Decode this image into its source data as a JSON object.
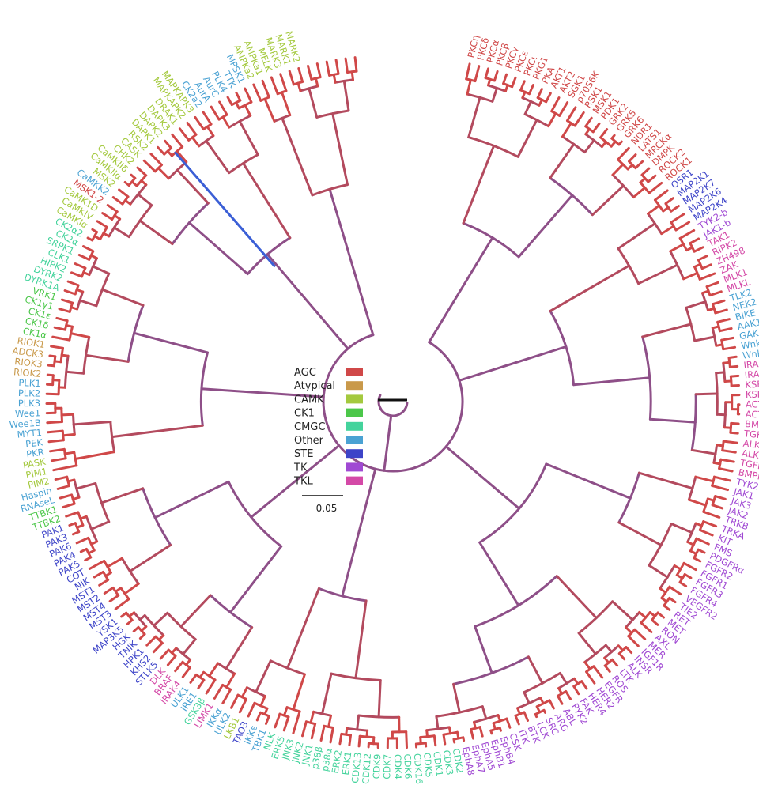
{
  "colors": {
    "AGC": "#d04848",
    "Atypical": "#c9994a",
    "CAMK": "#a4c93e",
    "CK1": "#4cc74a",
    "CMGC": "#44d39c",
    "Other": "#4aa2d3",
    "STE": "#3d44c8",
    "TK": "#a049d3",
    "TKL": "#d449a7",
    "backbone": "#8e4f88",
    "mid": "#b34a5e",
    "highlight": "#3b5fd6",
    "root": "#111111"
  },
  "legend": [
    {
      "label": "AGC",
      "key": "AGC"
    },
    {
      "label": "Atypical",
      "key": "Atypical"
    },
    {
      "label": "CAMK",
      "key": "CAMK"
    },
    {
      "label": "CK1",
      "key": "CK1"
    },
    {
      "label": "CMGC",
      "key": "CMGC"
    },
    {
      "label": "Other",
      "key": "Other"
    },
    {
      "label": "STE",
      "key": "STE"
    },
    {
      "label": "TK",
      "key": "TK"
    },
    {
      "label": "TKL",
      "key": "TKL"
    }
  ],
  "scale_bar": {
    "label": "0.05"
  },
  "leaves": [
    {
      "n": "PKCη",
      "g": "AGC"
    },
    {
      "n": "PKCδ",
      "g": "AGC"
    },
    {
      "n": "PKCα",
      "g": "AGC"
    },
    {
      "n": "PKCβ",
      "g": "AGC"
    },
    {
      "n": "PKCγ",
      "g": "AGC"
    },
    {
      "n": "PKCε",
      "g": "AGC"
    },
    {
      "n": "PKCι",
      "g": "AGC"
    },
    {
      "n": "PKG1",
      "g": "AGC"
    },
    {
      "n": "PKA",
      "g": "AGC"
    },
    {
      "n": "AKT1",
      "g": "AGC"
    },
    {
      "n": "AKT2",
      "g": "AGC"
    },
    {
      "n": "SGK1",
      "g": "AGC"
    },
    {
      "n": "p70S6K",
      "g": "AGC"
    },
    {
      "n": "RSK1",
      "g": "AGC"
    },
    {
      "n": "MSK1",
      "g": "AGC"
    },
    {
      "n": "PDK1",
      "g": "AGC"
    },
    {
      "n": "GRK2",
      "g": "AGC"
    },
    {
      "n": "GRK5",
      "g": "AGC"
    },
    {
      "n": "GRK6",
      "g": "AGC"
    },
    {
      "n": "NDR1",
      "g": "AGC"
    },
    {
      "n": "LATS1",
      "g": "AGC"
    },
    {
      "n": "MRCKα",
      "g": "AGC"
    },
    {
      "n": "DMPK",
      "g": "AGC"
    },
    {
      "n": "ROCK2",
      "g": "AGC"
    },
    {
      "n": "ROCK1",
      "g": "AGC"
    },
    {
      "n": "OSR1",
      "g": "STE"
    },
    {
      "n": "MAP2K1",
      "g": "STE"
    },
    {
      "n": "MAP2K7",
      "g": "STE"
    },
    {
      "n": "MAP2K6",
      "g": "STE"
    },
    {
      "n": "MAP2K4",
      "g": "STE"
    },
    {
      "n": "TYK2-b",
      "g": "TK"
    },
    {
      "n": "JAK1-b",
      "g": "TK"
    },
    {
      "n": "TAK1",
      "g": "TKL"
    },
    {
      "n": "RIPK2",
      "g": "TKL"
    },
    {
      "n": "ZH498",
      "g": "TKL"
    },
    {
      "n": "ZAK",
      "g": "TKL"
    },
    {
      "n": "MLK1",
      "g": "TKL"
    },
    {
      "n": "MLKL",
      "g": "TKL"
    },
    {
      "n": "TLK2",
      "g": "Other"
    },
    {
      "n": "NEK2",
      "g": "Other"
    },
    {
      "n": "BIKE",
      "g": "Other"
    },
    {
      "n": "AAK1",
      "g": "Other"
    },
    {
      "n": "GAK",
      "g": "Other"
    },
    {
      "n": "Wnk3",
      "g": "Other"
    },
    {
      "n": "Wnk1",
      "g": "Other"
    },
    {
      "n": "IRAK3",
      "g": "TKL"
    },
    {
      "n": "IRAK1",
      "g": "TKL"
    },
    {
      "n": "KSR2",
      "g": "TKL"
    },
    {
      "n": "KSR1",
      "g": "TKL"
    },
    {
      "n": "ACTR2B",
      "g": "TKL"
    },
    {
      "n": "ACTR2",
      "g": "TKL"
    },
    {
      "n": "BMPR2",
      "g": "TKL"
    },
    {
      "n": "TGFbR2",
      "g": "TKL"
    },
    {
      "n": "ALK2",
      "g": "TKL"
    },
    {
      "n": "ALK1",
      "g": "TKL"
    },
    {
      "n": "TGFbR1",
      "g": "TKL"
    },
    {
      "n": "BMPR1B",
      "g": "TKL"
    },
    {
      "n": "TYK2",
      "g": "TK"
    },
    {
      "n": "JAK1",
      "g": "TK"
    },
    {
      "n": "JAK3",
      "g": "TK"
    },
    {
      "n": "JAK2",
      "g": "TK"
    },
    {
      "n": "TRKB",
      "g": "TK"
    },
    {
      "n": "TRKA",
      "g": "TK"
    },
    {
      "n": "KIT",
      "g": "TK"
    },
    {
      "n": "FMS",
      "g": "TK"
    },
    {
      "n": "PDGFRα",
      "g": "TK"
    },
    {
      "n": "FGFR2",
      "g": "TK"
    },
    {
      "n": "FGFR1",
      "g": "TK"
    },
    {
      "n": "FGFR3",
      "g": "TK"
    },
    {
      "n": "FGFR4",
      "g": "TK"
    },
    {
      "n": "VEGFR2",
      "g": "TK"
    },
    {
      "n": "TIE2",
      "g": "TK"
    },
    {
      "n": "RET",
      "g": "TK"
    },
    {
      "n": "MET",
      "g": "TK"
    },
    {
      "n": "RON",
      "g": "TK"
    },
    {
      "n": "AXL",
      "g": "TK"
    },
    {
      "n": "MER",
      "g": "TK"
    },
    {
      "n": "IGF1R",
      "g": "TK"
    },
    {
      "n": "INSR",
      "g": "TK"
    },
    {
      "n": "ALK",
      "g": "TK"
    },
    {
      "n": "LTK",
      "g": "TK"
    },
    {
      "n": "ROS",
      "g": "TK"
    },
    {
      "n": "EGFR",
      "g": "TK"
    },
    {
      "n": "HER2",
      "g": "TK"
    },
    {
      "n": "HER4",
      "g": "TK"
    },
    {
      "n": "FAK",
      "g": "TK"
    },
    {
      "n": "PYK2",
      "g": "TK"
    },
    {
      "n": "ABL",
      "g": "TK"
    },
    {
      "n": "ARG",
      "g": "TK"
    },
    {
      "n": "SRC",
      "g": "TK"
    },
    {
      "n": "LCK",
      "g": "TK"
    },
    {
      "n": "BTK",
      "g": "TK"
    },
    {
      "n": "ITK",
      "g": "TK"
    },
    {
      "n": "CSK",
      "g": "TK"
    },
    {
      "n": "EphB4",
      "g": "TK"
    },
    {
      "n": "EphB1",
      "g": "TK"
    },
    {
      "n": "EphA5",
      "g": "TK"
    },
    {
      "n": "EphA7",
      "g": "TK"
    },
    {
      "n": "EphA8",
      "g": "TK"
    },
    {
      "n": "CDK2",
      "g": "CMGC"
    },
    {
      "n": "CDK3",
      "g": "CMGC"
    },
    {
      "n": "CDK1",
      "g": "CMGC"
    },
    {
      "n": "CDK5",
      "g": "CMGC"
    },
    {
      "n": "CDK16",
      "g": "CMGC"
    },
    {
      "n": "CDK6",
      "g": "CMGC"
    },
    {
      "n": "CDK4",
      "g": "CMGC"
    },
    {
      "n": "CDK7",
      "g": "CMGC"
    },
    {
      "n": "CDK9",
      "g": "CMGC"
    },
    {
      "n": "CDK12",
      "g": "CMGC"
    },
    {
      "n": "CDK13",
      "g": "CMGC"
    },
    {
      "n": "ERK1",
      "g": "CMGC"
    },
    {
      "n": "ERK2",
      "g": "CMGC"
    },
    {
      "n": "p38α",
      "g": "CMGC"
    },
    {
      "n": "p38β",
      "g": "CMGC"
    },
    {
      "n": "JNK1",
      "g": "CMGC"
    },
    {
      "n": "JNK2",
      "g": "CMGC"
    },
    {
      "n": "JNK3",
      "g": "CMGC"
    },
    {
      "n": "ERK5",
      "g": "CMGC"
    },
    {
      "n": "NLK",
      "g": "CMGC"
    },
    {
      "n": "TBK1",
      "g": "Other"
    },
    {
      "n": "IKKε",
      "g": "Other"
    },
    {
      "n": "TAO3",
      "g": "STE"
    },
    {
      "n": "LKB1",
      "g": "CAMK"
    },
    {
      "n": "ULK2",
      "g": "Other"
    },
    {
      "n": "IKKα",
      "g": "Other"
    },
    {
      "n": "LIMK1",
      "g": "TKL"
    },
    {
      "n": "GSK3β",
      "g": "CMGC"
    },
    {
      "n": "IRE1",
      "g": "Other"
    },
    {
      "n": "ULK1",
      "g": "Other"
    },
    {
      "n": "IRAK4",
      "g": "TKL"
    },
    {
      "n": "BRAF",
      "g": "TKL"
    },
    {
      "n": "DLK",
      "g": "TKL"
    },
    {
      "n": "STLK5",
      "g": "STE"
    },
    {
      "n": "KHS2",
      "g": "STE"
    },
    {
      "n": "HPK1",
      "g": "STE"
    },
    {
      "n": "TNIK",
      "g": "STE"
    },
    {
      "n": "HGK",
      "g": "STE"
    },
    {
      "n": "MAP3K5",
      "g": "STE"
    },
    {
      "n": "YSK1",
      "g": "STE"
    },
    {
      "n": "MST3",
      "g": "STE"
    },
    {
      "n": "MST4",
      "g": "STE"
    },
    {
      "n": "MST2",
      "g": "STE"
    },
    {
      "n": "MST1",
      "g": "STE"
    },
    {
      "n": "NIK",
      "g": "STE"
    },
    {
      "n": "COT",
      "g": "STE"
    },
    {
      "n": "PAK5",
      "g": "STE"
    },
    {
      "n": "PAK4",
      "g": "STE"
    },
    {
      "n": "PAK6",
      "g": "STE"
    },
    {
      "n": "PAK3",
      "g": "STE"
    },
    {
      "n": "PAK1",
      "g": "STE"
    },
    {
      "n": "TTBK2",
      "g": "CK1"
    },
    {
      "n": "TTBK1",
      "g": "CK1"
    },
    {
      "n": "RNAseL",
      "g": "Other"
    },
    {
      "n": "Haspin",
      "g": "Other"
    },
    {
      "n": "PIM2",
      "g": "CAMK"
    },
    {
      "n": "PIM1",
      "g": "CAMK"
    },
    {
      "n": "PASK",
      "g": "CAMK"
    },
    {
      "n": "PKR",
      "g": "Other"
    },
    {
      "n": "PEK",
      "g": "Other"
    },
    {
      "n": "MYT1",
      "g": "Other"
    },
    {
      "n": "Wee1B",
      "g": "Other"
    },
    {
      "n": "Wee1",
      "g": "Other"
    },
    {
      "n": "PLK3",
      "g": "Other"
    },
    {
      "n": "PLK2",
      "g": "Other"
    },
    {
      "n": "PLK1",
      "g": "Other"
    },
    {
      "n": "RIOK2",
      "g": "Atypical"
    },
    {
      "n": "RIOK3",
      "g": "Atypical"
    },
    {
      "n": "ADCK3",
      "g": "Atypical"
    },
    {
      "n": "RIOK1",
      "g": "Atypical"
    },
    {
      "n": "CK1α",
      "g": "CK1"
    },
    {
      "n": "CK1δ",
      "g": "CK1"
    },
    {
      "n": "CK1ε",
      "g": "CK1"
    },
    {
      "n": "CK1γ1",
      "g": "CK1"
    },
    {
      "n": "VRK1",
      "g": "CK1"
    },
    {
      "n": "DYRK1A",
      "g": "CMGC"
    },
    {
      "n": "DYRK2",
      "g": "CMGC"
    },
    {
      "n": "HIPK2",
      "g": "CMGC"
    },
    {
      "n": "CLK1",
      "g": "CMGC"
    },
    {
      "n": "SRPK1",
      "g": "CMGC"
    },
    {
      "n": "CK2α",
      "g": "CMGC"
    },
    {
      "n": "CK2α2",
      "g": "CMGC"
    },
    {
      "n": "CaMKIα",
      "g": "CAMK"
    },
    {
      "n": "CaMKIV",
      "g": "CAMK"
    },
    {
      "n": "CaMK1D",
      "g": "CAMK"
    },
    {
      "n": "MSK1-2",
      "g": "AGC"
    },
    {
      "n": "CaMKK2",
      "g": "Other"
    },
    {
      "n": "MSK2",
      "g": "CAMK"
    },
    {
      "n": "CaMKIIα",
      "g": "CAMK"
    },
    {
      "n": "CaMKIIδ",
      "g": "CAMK"
    },
    {
      "n": "CHK2",
      "g": "CAMK"
    },
    {
      "n": "CASK",
      "g": "CAMK"
    },
    {
      "n": "RSK2",
      "g": "CAMK"
    },
    {
      "n": "DAPK1",
      "g": "CAMK"
    },
    {
      "n": "DAPK2",
      "g": "CAMK"
    },
    {
      "n": "DAPK3",
      "g": "CAMK"
    },
    {
      "n": "DRAK1",
      "g": "CAMK"
    },
    {
      "n": "MAPKAPK2",
      "g": "CAMK"
    },
    {
      "n": "MAPKAPK3",
      "g": "CAMK"
    },
    {
      "n": "CK2a2",
      "g": "Other"
    },
    {
      "n": "AurA",
      "g": "Other"
    },
    {
      "n": "AurC",
      "g": "Other"
    },
    {
      "n": "PLK4",
      "g": "Other"
    },
    {
      "n": "TTK",
      "g": "Other"
    },
    {
      "n": "MPSK1",
      "g": "Other"
    },
    {
      "n": "AMPKa2",
      "g": "CAMK"
    },
    {
      "n": "AMPKa1",
      "g": "CAMK"
    },
    {
      "n": "MELK",
      "g": "CAMK"
    },
    {
      "n": "MARK3",
      "g": "CAMK"
    },
    {
      "n": "MARK1",
      "g": "CAMK"
    },
    {
      "n": "MARK2",
      "g": "CAMK"
    }
  ]
}
